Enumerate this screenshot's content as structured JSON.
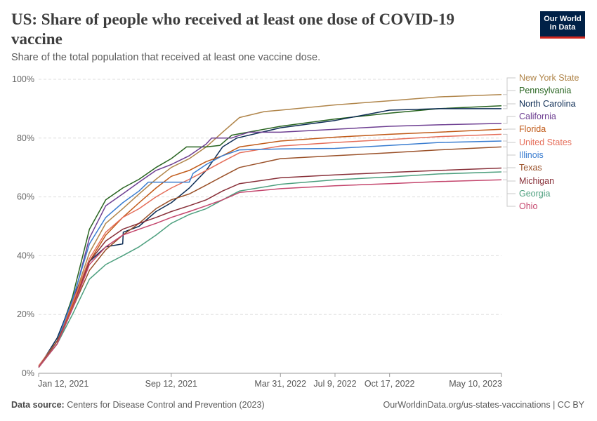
{
  "header": {
    "title": "US: Share of people who received at least one dose of COVID-19 vaccine",
    "subtitle": "Share of the total population that received at least one vaccine dose.",
    "logo_line1": "Our World",
    "logo_line2": "in Data"
  },
  "footer": {
    "source_label": "Data source:",
    "source_text": "Centers for Disease Control and Prevention (2023)",
    "url_text": "OurWorldinData.org/us-states-vaccinations | CC BY"
  },
  "colors": {
    "logo_bg": "#002147",
    "logo_accent": "#ce261e",
    "grid": "#dddddd"
  },
  "chart_data": {
    "type": "line",
    "title": "US: Share of people who received at least one dose of COVID-19 vaccine",
    "subtitle": "Share of the total population that received at least one vaccine dose.",
    "xlabel": "",
    "ylabel": "",
    "x_ticks": [
      "2021-01-12",
      "2021-09-12",
      "2022-03-31",
      "2022-07-09",
      "2022-10-17",
      "2023-05-10"
    ],
    "x_tick_labels": [
      "Jan 12, 2021",
      "Sep 12, 2021",
      "Mar 31, 2022",
      "Jul 9, 2022",
      "Oct 17, 2022",
      "May 10, 2023"
    ],
    "xlim": [
      "2021-01-12",
      "2023-05-10"
    ],
    "ylim": [
      0,
      100
    ],
    "y_ticks": [
      0,
      20,
      40,
      60,
      80,
      100
    ],
    "y_tick_labels": [
      "0%",
      "20%",
      "40%",
      "60%",
      "80%",
      "100%"
    ],
    "grid": "horizontal dashed",
    "legend": "right, labels at line ends",
    "series": [
      {
        "name": "New York State",
        "color": "#b0854a",
        "points": [
          [
            "2021-01-12",
            2.5
          ],
          [
            "2021-02-15",
            11
          ],
          [
            "2021-03-15",
            24
          ],
          [
            "2021-04-15",
            41
          ],
          [
            "2021-05-15",
            51
          ],
          [
            "2021-06-15",
            56
          ],
          [
            "2021-07-15",
            61
          ],
          [
            "2021-08-15",
            66
          ],
          [
            "2021-09-12",
            70
          ],
          [
            "2021-10-15",
            73
          ],
          [
            "2021-11-15",
            77
          ],
          [
            "2021-12-15",
            82
          ],
          [
            "2022-01-15",
            87
          ],
          [
            "2022-03-01",
            89
          ],
          [
            "2022-03-31",
            89.5
          ],
          [
            "2022-07-09",
            91.3
          ],
          [
            "2022-10-17",
            92.7
          ],
          [
            "2023-01-15",
            94
          ],
          [
            "2023-05-10",
            94.8
          ]
        ]
      },
      {
        "name": "Pennsylvania",
        "color": "#286420",
        "points": [
          [
            "2021-01-12",
            2
          ],
          [
            "2021-02-15",
            11
          ],
          [
            "2021-03-15",
            26
          ],
          [
            "2021-04-15",
            49
          ],
          [
            "2021-05-15",
            59
          ],
          [
            "2021-06-15",
            63
          ],
          [
            "2021-07-15",
            66
          ],
          [
            "2021-08-15",
            70
          ],
          [
            "2021-09-12",
            73
          ],
          [
            "2021-10-10",
            77
          ],
          [
            "2021-11-15",
            77
          ],
          [
            "2021-12-10",
            77.5
          ],
          [
            "2022-01-01",
            81
          ],
          [
            "2022-03-31",
            84
          ],
          [
            "2022-07-09",
            86.5
          ],
          [
            "2022-10-17",
            88.5
          ],
          [
            "2023-01-15",
            90
          ],
          [
            "2023-05-10",
            91
          ]
        ]
      },
      {
        "name": "North Carolina",
        "color": "#0d2c54",
        "points": [
          [
            "2021-01-12",
            2
          ],
          [
            "2021-02-15",
            12
          ],
          [
            "2021-03-15",
            25
          ],
          [
            "2021-04-15",
            38
          ],
          [
            "2021-05-15",
            43
          ],
          [
            "2021-06-15",
            44
          ],
          [
            "2021-06-16",
            48
          ],
          [
            "2021-07-15",
            50
          ],
          [
            "2021-08-15",
            55
          ],
          [
            "2021-09-12",
            58
          ],
          [
            "2021-10-15",
            63
          ],
          [
            "2021-11-15",
            69
          ],
          [
            "2021-12-15",
            77
          ],
          [
            "2022-01-10",
            80
          ],
          [
            "2022-03-31",
            83.5
          ],
          [
            "2022-07-09",
            86
          ],
          [
            "2022-10-17",
            89.5
          ],
          [
            "2023-01-15",
            90
          ],
          [
            "2023-05-10",
            90
          ]
        ]
      },
      {
        "name": "California",
        "color": "#6d3e91",
        "points": [
          [
            "2021-01-12",
            2
          ],
          [
            "2021-02-15",
            11
          ],
          [
            "2021-03-15",
            24
          ],
          [
            "2021-04-15",
            46
          ],
          [
            "2021-05-15",
            57
          ],
          [
            "2021-06-15",
            61
          ],
          [
            "2021-07-15",
            65
          ],
          [
            "2021-08-15",
            69
          ],
          [
            "2021-09-12",
            71
          ],
          [
            "2021-10-15",
            74
          ],
          [
            "2021-11-15",
            78
          ],
          [
            "2021-11-25",
            80
          ],
          [
            "2021-12-31",
            80
          ],
          [
            "2022-02-01",
            82
          ],
          [
            "2022-03-31",
            82
          ],
          [
            "2022-07-09",
            83
          ],
          [
            "2022-10-17",
            84
          ],
          [
            "2023-01-15",
            84.5
          ],
          [
            "2023-05-10",
            85
          ]
        ]
      },
      {
        "name": "Florida",
        "color": "#c05917",
        "points": [
          [
            "2021-01-12",
            2
          ],
          [
            "2021-02-15",
            11
          ],
          [
            "2021-03-15",
            23
          ],
          [
            "2021-04-15",
            38
          ],
          [
            "2021-05-15",
            47
          ],
          [
            "2021-06-15",
            53
          ],
          [
            "2021-07-15",
            58
          ],
          [
            "2021-08-15",
            63
          ],
          [
            "2021-09-12",
            67
          ],
          [
            "2021-10-15",
            69
          ],
          [
            "2021-11-15",
            72
          ],
          [
            "2021-12-15",
            74
          ],
          [
            "2022-01-15",
            77
          ],
          [
            "2022-03-31",
            79
          ],
          [
            "2022-07-09",
            80.3
          ],
          [
            "2022-10-17",
            81.3
          ],
          [
            "2023-01-15",
            82
          ],
          [
            "2023-05-10",
            83
          ]
        ]
      },
      {
        "name": "United States",
        "color": "#e56e5a",
        "points": [
          [
            "2021-01-12",
            2.5
          ],
          [
            "2021-02-15",
            11
          ],
          [
            "2021-03-15",
            24
          ],
          [
            "2021-04-15",
            39
          ],
          [
            "2021-05-15",
            48
          ],
          [
            "2021-06-15",
            53
          ],
          [
            "2021-07-15",
            56
          ],
          [
            "2021-08-15",
            60
          ],
          [
            "2021-09-12",
            63
          ],
          [
            "2021-10-15",
            66
          ],
          [
            "2021-11-15",
            69
          ],
          [
            "2021-12-15",
            72
          ],
          [
            "2022-01-15",
            75
          ],
          [
            "2022-03-31",
            77.3
          ],
          [
            "2022-07-09",
            78.5
          ],
          [
            "2022-10-17",
            79.5
          ],
          [
            "2023-01-15",
            80.5
          ],
          [
            "2023-05-10",
            81.3
          ]
        ]
      },
      {
        "name": "Illinois",
        "color": "#3a7dd0",
        "points": [
          [
            "2021-01-12",
            2
          ],
          [
            "2021-02-15",
            11
          ],
          [
            "2021-03-15",
            25
          ],
          [
            "2021-04-15",
            44
          ],
          [
            "2021-05-15",
            53
          ],
          [
            "2021-06-15",
            58
          ],
          [
            "2021-07-15",
            62
          ],
          [
            "2021-08-01",
            65
          ],
          [
            "2021-09-12",
            65
          ],
          [
            "2021-10-15",
            65
          ],
          [
            "2021-10-22",
            68
          ],
          [
            "2021-11-15",
            71
          ],
          [
            "2021-12-15",
            74
          ],
          [
            "2022-01-15",
            76
          ],
          [
            "2022-03-31",
            76.3
          ],
          [
            "2022-07-09",
            76.5
          ],
          [
            "2022-10-17",
            77.5
          ],
          [
            "2023-01-15",
            78.5
          ],
          [
            "2023-05-10",
            79
          ]
        ]
      },
      {
        "name": "Texas",
        "color": "#9a5129",
        "points": [
          [
            "2021-01-12",
            2
          ],
          [
            "2021-02-15",
            11
          ],
          [
            "2021-03-15",
            22
          ],
          [
            "2021-04-15",
            35
          ],
          [
            "2021-05-15",
            42
          ],
          [
            "2021-06-15",
            47
          ],
          [
            "2021-07-15",
            51
          ],
          [
            "2021-08-15",
            56
          ],
          [
            "2021-09-12",
            59
          ],
          [
            "2021-10-15",
            61
          ],
          [
            "2021-11-15",
            64
          ],
          [
            "2021-12-15",
            67
          ],
          [
            "2022-01-15",
            70
          ],
          [
            "2022-03-31",
            73
          ],
          [
            "2022-07-09",
            74
          ],
          [
            "2022-10-17",
            75
          ],
          [
            "2023-01-15",
            76
          ],
          [
            "2023-05-10",
            77
          ]
        ]
      },
      {
        "name": "Michigan",
        "color": "#883039",
        "points": [
          [
            "2021-01-12",
            2
          ],
          [
            "2021-02-15",
            10
          ],
          [
            "2021-03-15",
            22
          ],
          [
            "2021-04-15",
            38
          ],
          [
            "2021-05-15",
            45
          ],
          [
            "2021-06-15",
            49
          ],
          [
            "2021-07-15",
            51
          ],
          [
            "2021-08-15",
            53
          ],
          [
            "2021-09-12",
            55
          ],
          [
            "2021-10-15",
            57
          ],
          [
            "2021-11-15",
            59
          ],
          [
            "2021-12-15",
            62
          ],
          [
            "2022-01-15",
            64.5
          ],
          [
            "2022-03-31",
            66.5
          ],
          [
            "2022-07-09",
            67.5
          ],
          [
            "2022-10-17",
            68.3
          ],
          [
            "2023-01-15",
            69
          ],
          [
            "2023-05-10",
            69.8
          ]
        ]
      },
      {
        "name": "Georgia",
        "color": "#4c9f7e",
        "points": [
          [
            "2021-01-12",
            2
          ],
          [
            "2021-02-15",
            10
          ],
          [
            "2021-03-15",
            20
          ],
          [
            "2021-04-15",
            32
          ],
          [
            "2021-05-15",
            37
          ],
          [
            "2021-06-15",
            40
          ],
          [
            "2021-07-15",
            43
          ],
          [
            "2021-08-15",
            47
          ],
          [
            "2021-09-12",
            51
          ],
          [
            "2021-10-15",
            54
          ],
          [
            "2021-11-15",
            56
          ],
          [
            "2021-12-15",
            59
          ],
          [
            "2022-01-15",
            62
          ],
          [
            "2022-03-31",
            64.3
          ],
          [
            "2022-07-09",
            65.8
          ],
          [
            "2022-10-17",
            66.8
          ],
          [
            "2023-01-15",
            67.8
          ],
          [
            "2023-05-10",
            68.5
          ]
        ]
      },
      {
        "name": "Ohio",
        "color": "#c4466d",
        "points": [
          [
            "2021-01-12",
            2
          ],
          [
            "2021-02-15",
            10
          ],
          [
            "2021-03-15",
            22
          ],
          [
            "2021-04-15",
            37
          ],
          [
            "2021-05-15",
            43
          ],
          [
            "2021-06-15",
            47
          ],
          [
            "2021-07-15",
            49
          ],
          [
            "2021-08-15",
            51
          ],
          [
            "2021-09-12",
            53
          ],
          [
            "2021-10-15",
            55
          ],
          [
            "2021-11-15",
            57
          ],
          [
            "2021-12-15",
            59
          ],
          [
            "2022-01-15",
            61.5
          ],
          [
            "2022-03-31",
            62.8
          ],
          [
            "2022-07-09",
            63.8
          ],
          [
            "2022-10-17",
            64.5
          ],
          [
            "2023-01-15",
            65.2
          ],
          [
            "2023-05-10",
            65.8
          ]
        ]
      }
    ]
  }
}
